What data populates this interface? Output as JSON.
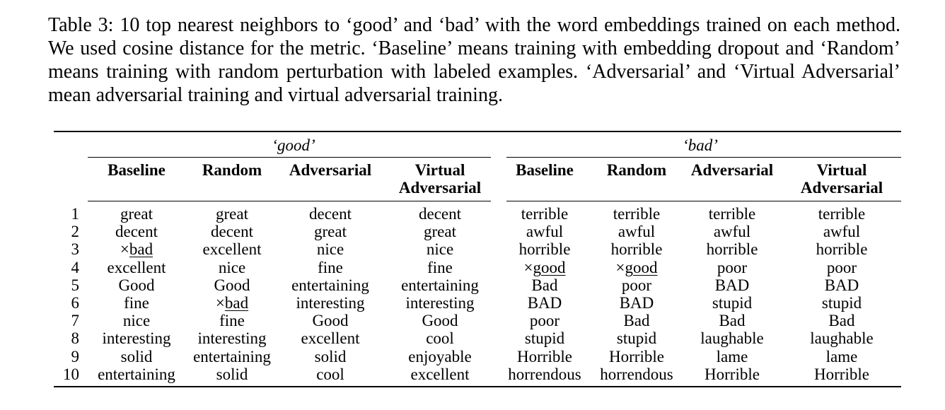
{
  "caption": "Table 3: 10 top nearest neighbors to ‘good’ and ‘bad’ with the word embeddings trained on each method. We used cosine distance for the metric. ‘Baseline’ means training with embedding dropout and ‘Random’ means training with random perturbation with labeled examples. ‘Adversarial’ and ‘Virtual Adversarial’ mean adversarial training and virtual adversarial training.",
  "groups": [
    "‘good’",
    "‘bad’"
  ],
  "headers": [
    [
      "Baseline"
    ],
    [
      "Random"
    ],
    [
      "Adversarial"
    ],
    [
      "Virtual",
      "Adversarial"
    ],
    [
      "Baseline"
    ],
    [
      "Random"
    ],
    [
      "Adversarial"
    ],
    [
      "Virtual",
      "Adversarial"
    ]
  ],
  "wrong_mark": "×",
  "rows": [
    {
      "rank": "1",
      "cells": [
        "great",
        "great",
        "decent",
        "decent",
        "terrible",
        "terrible",
        "terrible",
        "terrible"
      ]
    },
    {
      "rank": "2",
      "cells": [
        "decent",
        "decent",
        "great",
        "great",
        "awful",
        "awful",
        "awful",
        "awful"
      ]
    },
    {
      "rank": "3",
      "cells": [
        "bad",
        "excellent",
        "nice",
        "nice",
        "horrible",
        "horrible",
        "horrible",
        "horrible"
      ],
      "marked": [
        0
      ]
    },
    {
      "rank": "4",
      "cells": [
        "excellent",
        "nice",
        "fine",
        "fine",
        "good",
        "good",
        "poor",
        "poor"
      ],
      "marked": [
        4,
        5
      ]
    },
    {
      "rank": "5",
      "cells": [
        "Good",
        "Good",
        "entertaining",
        "entertaining",
        "Bad",
        "poor",
        "BAD",
        "BAD"
      ]
    },
    {
      "rank": "6",
      "cells": [
        "fine",
        "bad",
        "interesting",
        "interesting",
        "BAD",
        "BAD",
        "stupid",
        "stupid"
      ],
      "marked": [
        1
      ]
    },
    {
      "rank": "7",
      "cells": [
        "nice",
        "fine",
        "Good",
        "Good",
        "poor",
        "Bad",
        "Bad",
        "Bad"
      ]
    },
    {
      "rank": "8",
      "cells": [
        "interesting",
        "interesting",
        "excellent",
        "cool",
        "stupid",
        "stupid",
        "laughable",
        "laughable"
      ]
    },
    {
      "rank": "9",
      "cells": [
        "solid",
        "entertaining",
        "solid",
        "enjoyable",
        "Horrible",
        "Horrible",
        "lame",
        "lame"
      ]
    },
    {
      "rank": "10",
      "cells": [
        "entertaining",
        "solid",
        "cool",
        "excellent",
        "horrendous",
        "horrendous",
        "Horrible",
        "Horrible"
      ]
    }
  ]
}
